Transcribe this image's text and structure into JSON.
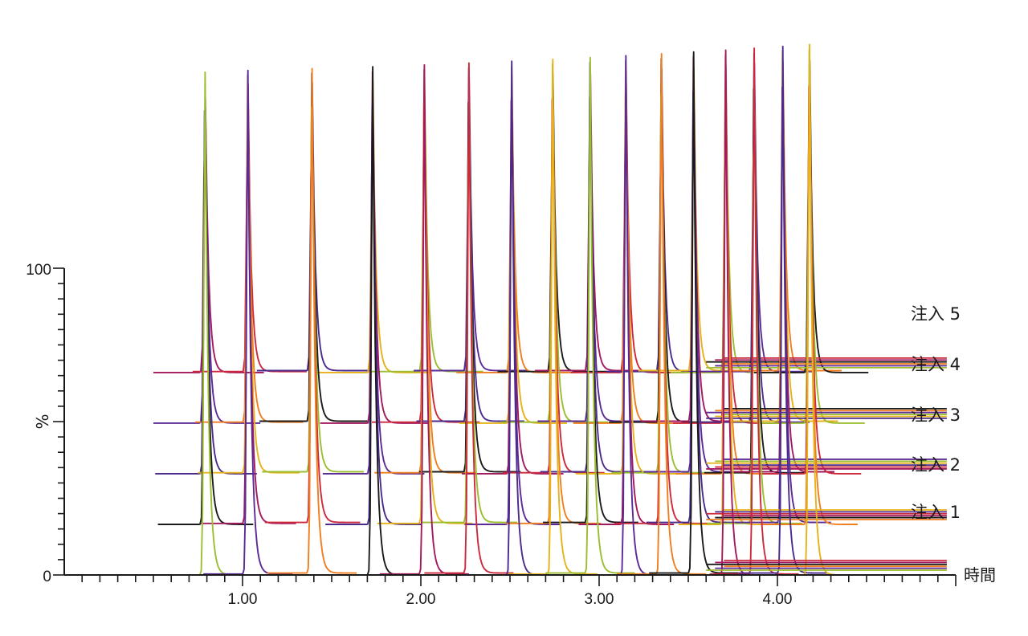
{
  "chart_data": {
    "type": "line",
    "title": "",
    "xlabel": "時間",
    "ylabel": "%",
    "x_ticks": [
      "1.00",
      "2.00",
      "3.00",
      "4.00"
    ],
    "y_ticks": [
      "0",
      "100"
    ],
    "xlim": [
      0.0,
      5.0
    ],
    "ylim": [
      0,
      100
    ],
    "stack_offset": 16.5,
    "peak_times": [
      0.79,
      1.03,
      1.39,
      1.73,
      2.02,
      2.27,
      2.51,
      2.74,
      2.95,
      3.15,
      3.35,
      3.53,
      3.71,
      3.87,
      4.03,
      4.18
    ],
    "colors": [
      "#9bbd30",
      "#5b2a96",
      "#f07e1f",
      "#1a1a1a",
      "#a2195f",
      "#cc2a3c",
      "#4a2a8c",
      "#e6b21a"
    ],
    "injections": [
      {
        "label": "注入 1",
        "baseline": 0
      },
      {
        "label": "注入 2",
        "baseline": 16.5
      },
      {
        "label": "注入 3",
        "baseline": 33
      },
      {
        "label": "注入 4",
        "baseline": 49.5
      },
      {
        "label": "注入 5",
        "baseline": 66
      }
    ]
  }
}
